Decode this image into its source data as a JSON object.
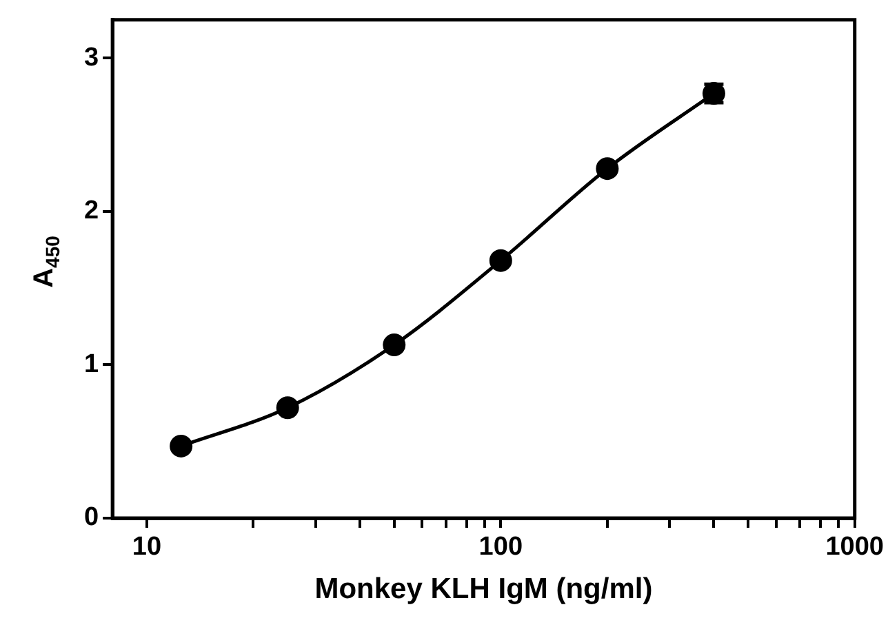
{
  "chart_data": {
    "type": "line",
    "xlabel": "Monkey KLH IgM (ng/ml)",
    "ylabel": "A$_{450}$",
    "x": [
      12.5,
      25,
      50,
      100,
      200,
      400
    ],
    "series": [
      {
        "color": "#000000",
        "values": [
          0.47,
          0.72,
          1.13,
          1.68,
          2.28,
          2.77
        ],
        "errors": [
          null,
          null,
          null,
          null,
          null,
          0.06
        ]
      }
    ],
    "log": "x",
    "xlim": [
      8,
      1000
    ],
    "xticks": [
      10,
      {
        "value": 20,
        "label": null
      },
      {
        "value": 30,
        "label": null
      },
      {
        "value": 40,
        "label": null
      },
      {
        "value": 50,
        "label": null
      },
      {
        "value": 60,
        "label": null
      },
      {
        "value": 70,
        "label": null
      },
      {
        "value": 80,
        "label": null
      },
      {
        "value": 90,
        "label": null
      },
      100,
      {
        "value": 200,
        "label": null
      },
      {
        "value": 300,
        "label": null
      },
      {
        "value": 400,
        "label": null
      },
      {
        "value": 500,
        "label": null
      },
      {
        "value": 600,
        "label": null
      },
      {
        "value": 700,
        "label": null
      },
      {
        "value": 800,
        "label": null
      },
      {
        "value": 900,
        "label": null
      },
      1000
    ],
    "ylim": [
      0,
      3.25
    ],
    "yticks": [
      0,
      1,
      2,
      3
    ],
    "grid": false,
    "legend": false,
    "marker": "circle",
    "line_style": "solid"
  }
}
